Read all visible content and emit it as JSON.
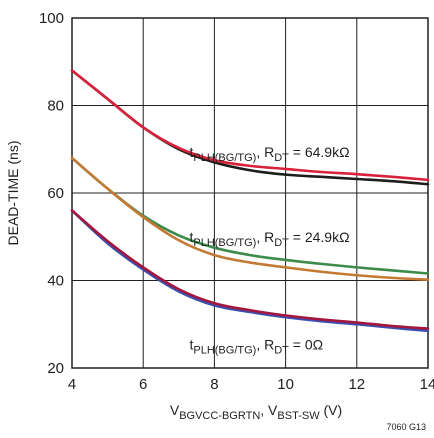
{
  "chart_data": {
    "type": "line",
    "title": "",
    "xlabel": {
      "main": "V",
      "sub1": "BGVCC-BGRTN",
      "sep": ", V",
      "sub2": "BST-SW",
      "unit": " (V)"
    },
    "ylabel": "DEAD-TIME (ns)",
    "xlim": [
      4,
      14
    ],
    "ylim": [
      20,
      100
    ],
    "xticks": [
      4,
      6,
      8,
      10,
      12,
      14
    ],
    "yticks": [
      20,
      40,
      60,
      80,
      100
    ],
    "grid": true,
    "figure_id": "7060 G13",
    "series": [
      {
        "color": "#1d1d1b",
        "x": [
          4,
          5,
          6,
          7,
          8,
          9,
          10,
          11,
          12,
          13,
          14
        ],
        "y": [
          88,
          81.5,
          75,
          70,
          67,
          65.2,
          64.2,
          63.7,
          63.2,
          62.7,
          62
        ]
      },
      {
        "color": "#d8213a",
        "x": [
          4,
          5,
          6,
          7,
          8,
          9,
          10,
          11,
          12,
          13,
          14
        ],
        "y": [
          88,
          81.5,
          75,
          70.3,
          67.5,
          66.2,
          65.5,
          64.8,
          64.3,
          63.7,
          63
        ]
      },
      {
        "color": "#3d8b4a",
        "x": [
          4,
          5,
          6,
          7,
          8,
          9,
          10,
          11,
          12,
          13,
          14
        ],
        "y": [
          68,
          61,
          54.8,
          50.3,
          47.5,
          45.8,
          44.7,
          43.8,
          43,
          42.3,
          41.6
        ]
      },
      {
        "color": "#c47a35",
        "x": [
          4,
          5,
          6,
          7,
          8,
          9,
          10,
          11,
          12,
          13,
          14
        ],
        "y": [
          68,
          61,
          54.5,
          49.2,
          45.8,
          44.1,
          43,
          42,
          41.2,
          40.6,
          40.2
        ]
      },
      {
        "color": "#3a4fb0",
        "x": [
          4,
          5,
          6,
          7,
          8,
          9,
          10,
          11,
          12,
          13,
          14
        ],
        "y": [
          56,
          48.5,
          42.5,
          37.5,
          34.3,
          32.8,
          31.6,
          30.7,
          30,
          29.2,
          28.5
        ]
      },
      {
        "color": "#a3173d",
        "x": [
          4,
          5,
          6,
          7,
          8,
          9,
          10,
          11,
          12,
          13,
          14
        ],
        "y": [
          56,
          49,
          43,
          38,
          34.8,
          33.2,
          32,
          31.1,
          30.4,
          29.6,
          29
        ]
      }
    ],
    "annotations": [
      {
        "id": "a1",
        "pos": [
          7.3,
          68.2
        ],
        "main": "t",
        "sub": "PLH(BG/TG)",
        "mid": ", R",
        "sub2": "DT",
        "value": " = 64.9kΩ"
      },
      {
        "id": "a2",
        "pos": [
          7.3,
          48.8
        ],
        "main": "t",
        "sub": "PLH(BG/TG)",
        "mid": ", R",
        "sub2": "DT",
        "value": " = 24.9kΩ"
      },
      {
        "id": "a3",
        "pos": [
          7.3,
          24.2
        ],
        "main": "t",
        "sub": "PLH(BG/TG)",
        "mid": ", R",
        "sub2": "DT",
        "value": " = 0Ω"
      }
    ]
  }
}
